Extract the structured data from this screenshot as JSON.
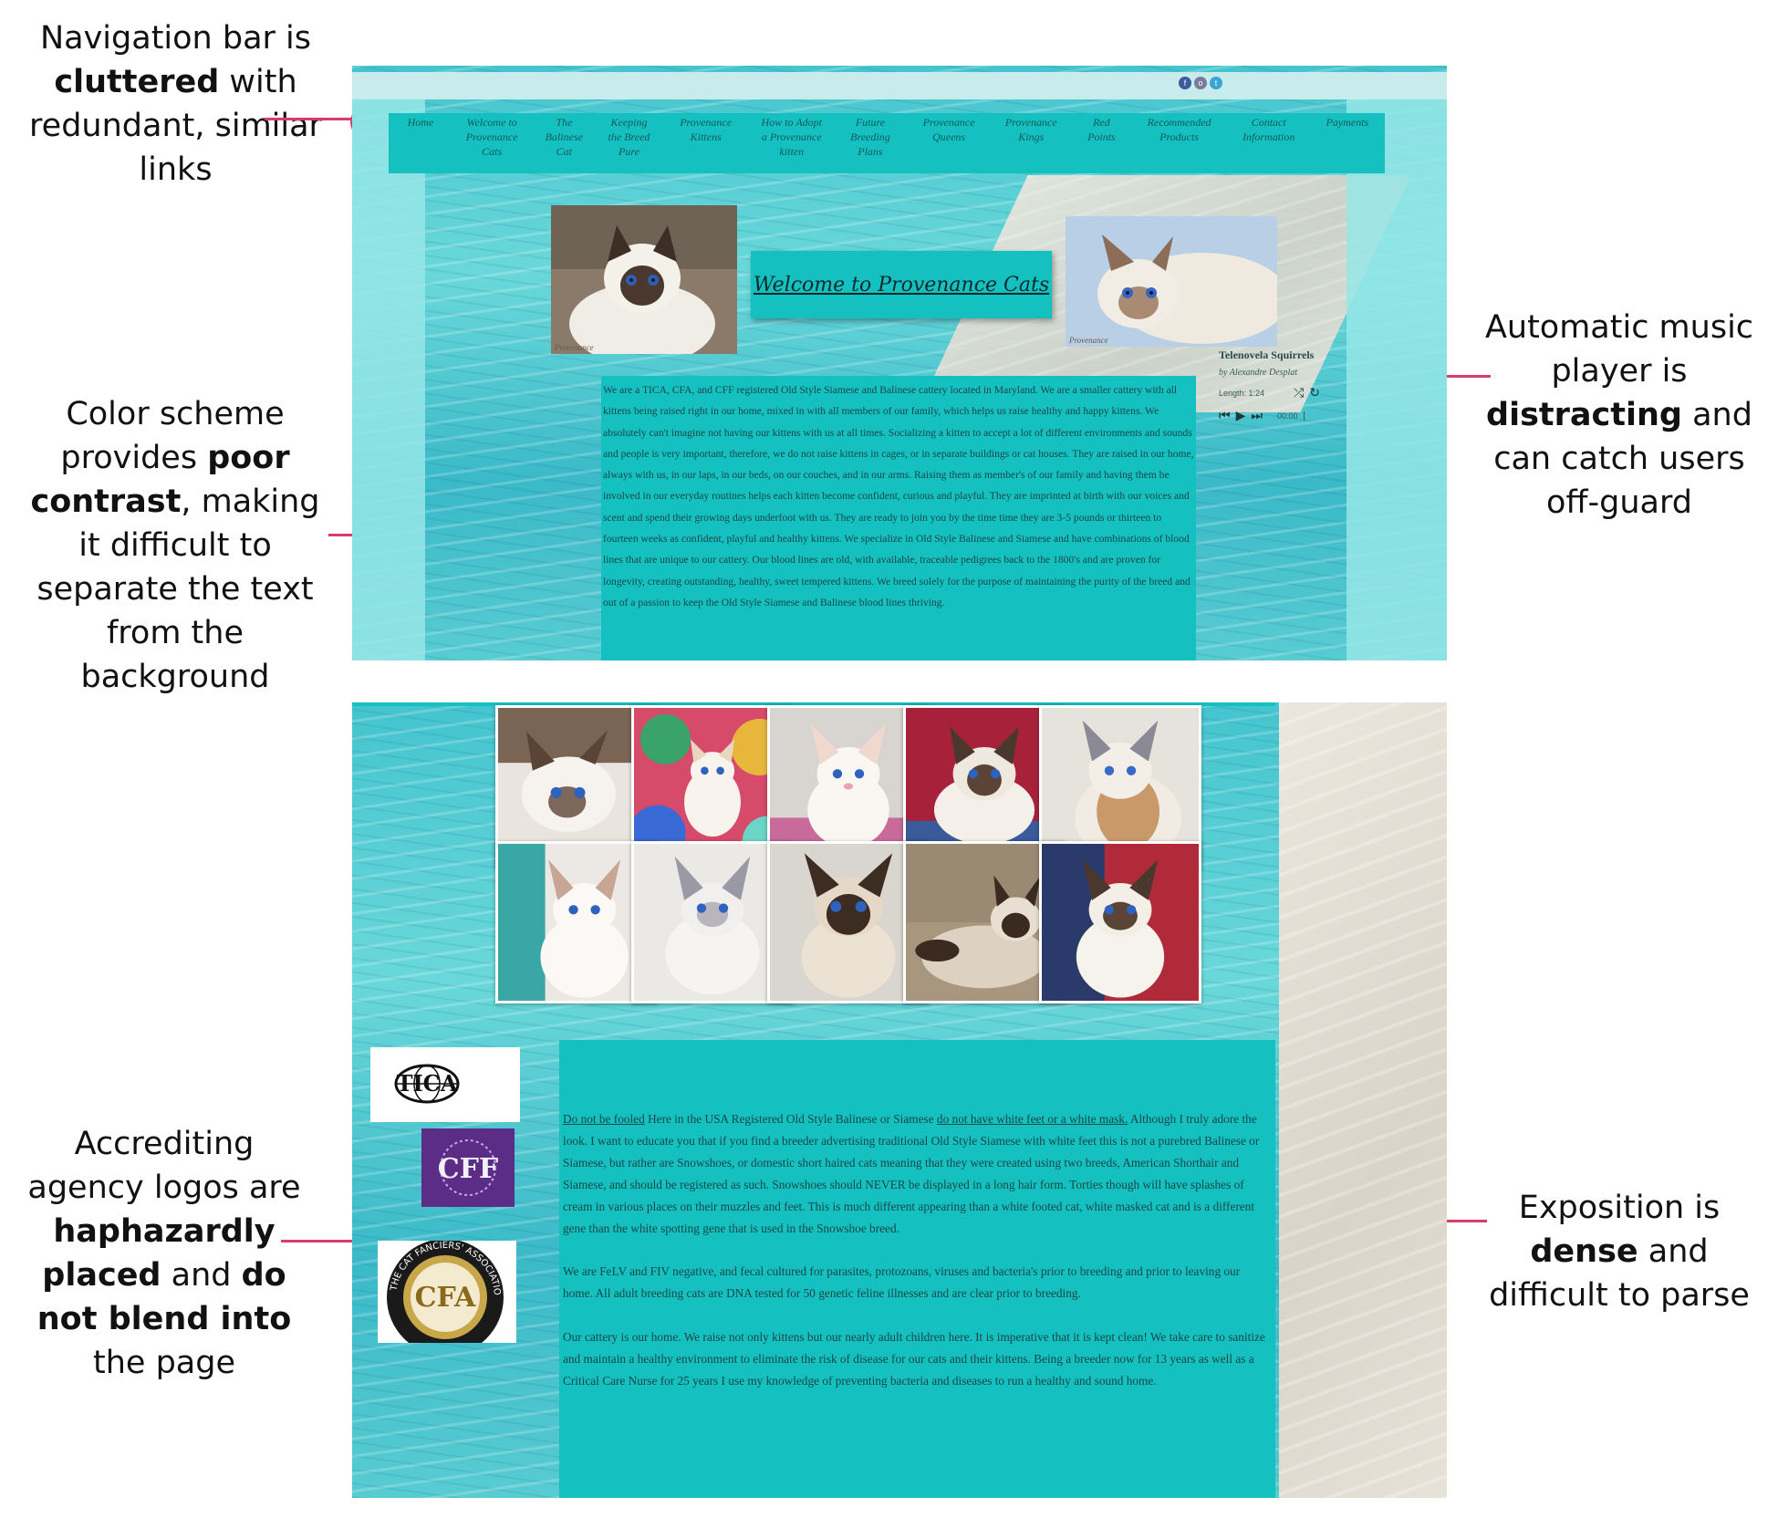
{
  "annotations": {
    "nav": [
      "Navigation bar is ",
      "cluttered",
      " with redundant, similar links"
    ],
    "color": [
      "Color scheme provides ",
      "poor contrast",
      ", making it difficult to separate the text from the background"
    ],
    "music": [
      "Automatic music player is ",
      "distracting",
      " and can catch users off-guard"
    ],
    "logos": [
      "Accrediting agency logos are ",
      "haphazardly placed",
      " and ",
      "do not blend into",
      " the page"
    ],
    "exposition": [
      "Exposition is ",
      "dense",
      " and difficult to parse"
    ]
  },
  "site": {
    "social_icons": [
      "facebook-icon",
      "instagram-icon",
      "twitter-icon"
    ],
    "social_glyphs": [
      "f",
      "o",
      "t"
    ],
    "nav_items": [
      "Home",
      "Welcome to Provenance Cats",
      "The Balinese Cat",
      "Keeping the Breed Pure",
      "Provenance Kittens",
      "How to Adopt a Provenance kitten",
      "Future Breeding Plans",
      "Provenance Queens",
      "Provenance Kings",
      "Red Points",
      "Recommended Products",
      "Contact Information",
      "Payments"
    ],
    "welcome_title": "Welcome to Provenance Cats",
    "photo_caption": "Provenance",
    "player": {
      "title": "Telenovela Squirrels",
      "artist": "by Alexandre Desplat",
      "length": "Length: 1:24",
      "time": "00:00"
    },
    "intro_text": "We are a TICA, CFA, and CFF registered Old Style Siamese and Balinese cattery located in Maryland.  We are a smaller cattery with all kittens being raised right in our home, mixed in with all members of our family, which helps us raise healthy and happy kittens. We absolutely can't imagine not having our kittens with us at all times. Socializing a kitten to accept a lot of different environments and sounds and people is very important, therefore, we do not raise kittens in cages, or in separate buildings or cat houses.  They are raised in our home, always with us, in our laps, in our beds, on our couches, and in our arms.  Raising them as member's of our family and having them be involved in our everyday routines helps each kitten become confident, curious and playful. They are imprinted at birth with our voices and scent and spend their growing days underfoot with us. They are ready to join you by the time time they are 3-5 pounds or thirteen to fourteen weeks as confident, playful and healthy kittens.  We specialize in Old Style Balinese and Siamese and have combinations of blood lines that are unique to our cattery.   Our blood lines are old, with available, traceable pedigrees back to the 1800's and are proven for longevity, creating outstanding, healthy, sweet tempered kittens.  We breed solely for the purpose of maintaining the purity of the breed and out of a passion to keep the Old Style Siamese and Balinese blood lines thriving.",
    "logos": {
      "tica": "TICA",
      "cff": "CFF",
      "cfa_ring": "THE CAT FANCIERS' ASSOCIATION",
      "cfa_center": "CFA"
    },
    "exposition": {
      "p1_link1": "Do not be fooled",
      "p1_part1": "  Here in the USA Registered Old Style Balinese or Siamese ",
      "p1_link2": "do not have white feet or a white mask.",
      "p1_part2": "  Although I truly adore the look.  I want to educate you that if you find a breeder advertising traditional Old Style Siamese with white feet this is not a purebred Balinese or Siamese, but rather are Snowshoes, or domestic short haired cats meaning that they were created using two breeds, American Shorthair and Siamese, and should be registered as such.   Snowshoes should NEVER be displayed in a long hair form.  Torties though will have splashes of cream in various places on their muzzles and feet.  This is much different appearing than a white footed cat, white masked cat and is a different gene than the white spotting gene that is used in the Snowshoe breed.",
      "p2": "We are FeLV and FIV negative, and fecal cultured for parasites, protozoans, viruses and bacteria's prior to breeding and prior to leaving our home.  All adult breeding cats are DNA tested for 50 genetic feline illnesses and are clear prior to breeding.",
      "p3": "Our cattery is our home.  We raise not only kittens but our nearly adult children here.  It is imperative that it is kept clean!  We take care to sanitize and maintain a healthy environment to eliminate the risk of disease for our cats and their kittens.  Being a breeder now for 13 years as well as a Critical Care Nurse for 25 years I use my knowledge of preventing bacteria and diseases to run a healthy and sound home."
    }
  }
}
